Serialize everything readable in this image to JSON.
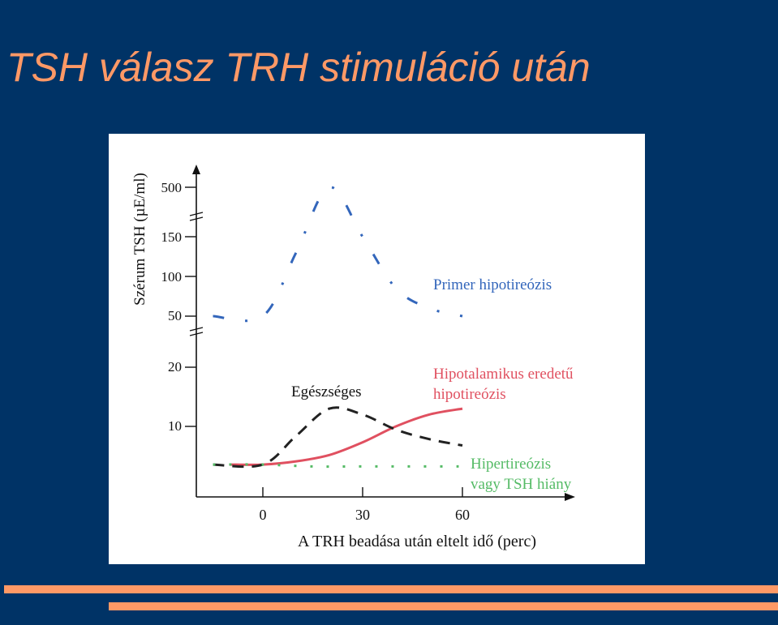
{
  "slide": {
    "title": "TSH válasz TRH stimuláció után"
  },
  "theme": {
    "background": "#003366",
    "title_color": "#ff9966",
    "bar_color": "#ff9966"
  },
  "chart_data": {
    "type": "line",
    "title": "",
    "xlabel": "A TRH beadása után eltelt idő (perc)",
    "ylabel": "Szérum TSH (µE/ml)",
    "xlim": [
      -15,
      75
    ],
    "x_ticks": [
      0,
      30,
      60
    ],
    "y_ticks": [
      10,
      20,
      50,
      100,
      150,
      500
    ],
    "y_scale": "broken",
    "grid": false,
    "legend": "inline labels at the right end of each curve",
    "series": [
      {
        "name": "Primer hipotireózis",
        "color": "#3366bb",
        "style": "dash-dot",
        "x": [
          -15,
          0,
          10,
          20,
          30,
          40,
          50,
          60
        ],
        "y": [
          50,
          50,
          130,
          500,
          150,
          85,
          60,
          50
        ]
      },
      {
        "name": "Hipotalamikus eredetű hipotireózis",
        "color": "#e05060",
        "style": "solid",
        "x": [
          -10,
          0,
          10,
          20,
          30,
          40,
          50,
          60
        ],
        "y": [
          4,
          4,
          4.5,
          5.5,
          7.5,
          10,
          12,
          13
        ]
      },
      {
        "name": "Egészséges",
        "color": "#222222",
        "style": "dashed",
        "x": [
          -15,
          0,
          10,
          20,
          30,
          40,
          50,
          60
        ],
        "y": [
          4,
          4,
          8.5,
          13,
          12,
          9.5,
          8,
          7
        ]
      },
      {
        "name": "Hipertireózis vagy TSH hiány",
        "color": "#55bb66",
        "style": "dotted",
        "x": [
          -15,
          0,
          15,
          30,
          45,
          60
        ],
        "y": [
          4,
          4,
          3.7,
          3.7,
          3.7,
          3.7
        ]
      }
    ],
    "labels": {
      "primer": "Primer hipotireózis",
      "hipotalamikus_1": "Hipotalamikus eredetű",
      "hipotalamikus_2": "hipotireózis",
      "egeszseges": "Egészséges",
      "hipertireozis_1": "Hipertireózis",
      "hipertireozis_2": "vagy TSH hiány"
    }
  }
}
